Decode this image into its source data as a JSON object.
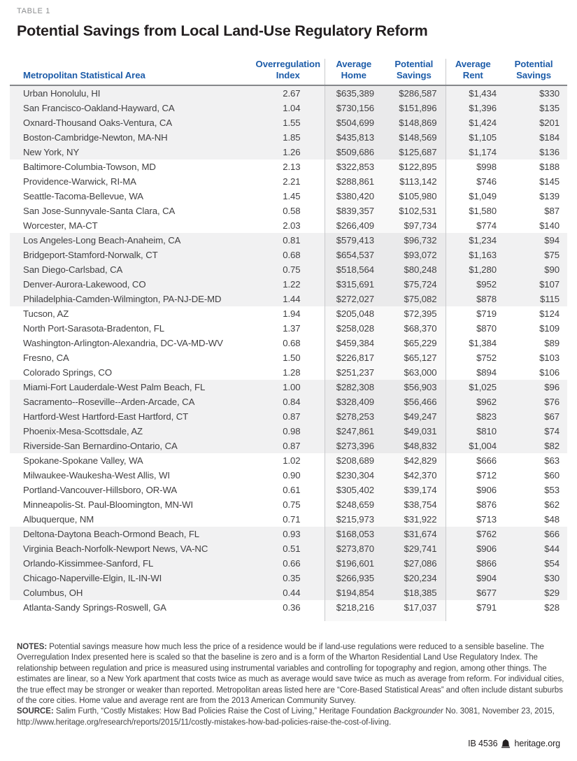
{
  "page": {
    "eyebrow": "TABLE 1",
    "title": "Potential Savings from Local Land-Use Regulatory Reform"
  },
  "colors": {
    "header_blue": "#1d5ca9",
    "band_gray": "#f1f1f2",
    "divider_gray": "#c9cacc",
    "header_rule_gray": "#85878a",
    "body_text": "#414042",
    "title_black": "#231f20"
  },
  "table": {
    "headers": [
      {
        "key": "msa",
        "lines": [
          "Metropolitan Statistical Area"
        ]
      },
      {
        "key": "overregulation-index",
        "lines": [
          "Overregulation",
          "Index"
        ]
      },
      {
        "key": "average-home",
        "lines": [
          "Average",
          "Home"
        ]
      },
      {
        "key": "potential-savings-home",
        "lines": [
          "Potential",
          "Savings"
        ]
      },
      {
        "key": "average-rent",
        "lines": [
          "Average",
          "Rent"
        ]
      },
      {
        "key": "potential-savings-rent",
        "lines": [
          "Potential",
          "Savings"
        ]
      }
    ],
    "rows": [
      {
        "msa": "Urban Honolulu, HI",
        "index": "2.67",
        "home": "$635,389",
        "home_savings": "$286,587",
        "rent": "$1,434",
        "rent_savings": "$330"
      },
      {
        "msa": "San Francisco-Oakland-Hayward, CA",
        "index": "1.04",
        "home": "$730,156",
        "home_savings": "$151,896",
        "rent": "$1,396",
        "rent_savings": "$135"
      },
      {
        "msa": "Oxnard-Thousand Oaks-Ventura, CA",
        "index": "1.55",
        "home": "$504,699",
        "home_savings": "$148,869",
        "rent": "$1,424",
        "rent_savings": "$201"
      },
      {
        "msa": "Boston-Cambridge-Newton, MA-NH",
        "index": "1.85",
        "home": "$435,813",
        "home_savings": "$148,569",
        "rent": "$1,105",
        "rent_savings": "$184"
      },
      {
        "msa": "New York, NY",
        "index": "1.26",
        "home": "$509,686",
        "home_savings": "$125,687",
        "rent": "$1,174",
        "rent_savings": "$136"
      },
      {
        "msa": "Baltimore-Columbia-Towson, MD",
        "index": "2.13",
        "home": "$322,853",
        "home_savings": "$122,895",
        "rent": "$998",
        "rent_savings": "$188"
      },
      {
        "msa": "Providence-Warwick, RI-MA",
        "index": "2.21",
        "home": "$288,861",
        "home_savings": "$113,142",
        "rent": "$746",
        "rent_savings": "$145"
      },
      {
        "msa": "Seattle-Tacoma-Bellevue, WA",
        "index": "1.45",
        "home": "$380,420",
        "home_savings": "$105,980",
        "rent": "$1,049",
        "rent_savings": "$139"
      },
      {
        "msa": "San Jose-Sunnyvale-Santa Clara, CA",
        "index": "0.58",
        "home": "$839,357",
        "home_savings": "$102,531",
        "rent": "$1,580",
        "rent_savings": "$87"
      },
      {
        "msa": "Worcester, MA-CT",
        "index": "2.03",
        "home": "$266,409",
        "home_savings": "$97,734",
        "rent": "$774",
        "rent_savings": "$140"
      },
      {
        "msa": "Los Angeles-Long Beach-Anaheim, CA",
        "index": "0.81",
        "home": "$579,413",
        "home_savings": "$96,732",
        "rent": "$1,234",
        "rent_savings": "$94"
      },
      {
        "msa": "Bridgeport-Stamford-Norwalk, CT",
        "index": "0.68",
        "home": "$654,537",
        "home_savings": "$93,072",
        "rent": "$1,163",
        "rent_savings": "$75"
      },
      {
        "msa": "San Diego-Carlsbad, CA",
        "index": "0.75",
        "home": "$518,564",
        "home_savings": "$80,248",
        "rent": "$1,280",
        "rent_savings": "$90"
      },
      {
        "msa": "Denver-Aurora-Lakewood, CO",
        "index": "1.22",
        "home": "$315,691",
        "home_savings": "$75,724",
        "rent": "$952",
        "rent_savings": "$107"
      },
      {
        "msa": "Philadelphia-Camden-Wilmington, PA-NJ-DE-MD",
        "index": "1.44",
        "home": "$272,027",
        "home_savings": "$75,082",
        "rent": "$878",
        "rent_savings": "$115"
      },
      {
        "msa": "Tucson, AZ",
        "index": "1.94",
        "home": "$205,048",
        "home_savings": "$72,395",
        "rent": "$719",
        "rent_savings": "$124"
      },
      {
        "msa": "North Port-Sarasota-Bradenton, FL",
        "index": "1.37",
        "home": "$258,028",
        "home_savings": "$68,370",
        "rent": "$870",
        "rent_savings": "$109"
      },
      {
        "msa": "Washington-Arlington-Alexandria, DC-VA-MD-WV",
        "index": "0.68",
        "home": "$459,384",
        "home_savings": "$65,229",
        "rent": "$1,384",
        "rent_savings": "$89"
      },
      {
        "msa": "Fresno, CA",
        "index": "1.50",
        "home": "$226,817",
        "home_savings": "$65,127",
        "rent": "$752",
        "rent_savings": "$103"
      },
      {
        "msa": "Colorado Springs, CO",
        "index": "1.28",
        "home": "$251,237",
        "home_savings": "$63,000",
        "rent": "$894",
        "rent_savings": "$106"
      },
      {
        "msa": "Miami-Fort Lauderdale-West Palm Beach, FL",
        "index": "1.00",
        "home": "$282,308",
        "home_savings": "$56,903",
        "rent": "$1,025",
        "rent_savings": "$96"
      },
      {
        "msa": "Sacramento--Roseville--Arden-Arcade, CA",
        "index": "0.84",
        "home": "$328,409",
        "home_savings": "$56,466",
        "rent": "$962",
        "rent_savings": "$76"
      },
      {
        "msa": "Hartford-West Hartford-East Hartford, CT",
        "index": "0.87",
        "home": "$278,253",
        "home_savings": "$49,247",
        "rent": "$823",
        "rent_savings": "$67"
      },
      {
        "msa": "Phoenix-Mesa-Scottsdale, AZ",
        "index": "0.98",
        "home": "$247,861",
        "home_savings": "$49,031",
        "rent": "$810",
        "rent_savings": "$74"
      },
      {
        "msa": "Riverside-San Bernardino-Ontario, CA",
        "index": "0.87",
        "home": "$273,396",
        "home_savings": "$48,832",
        "rent": "$1,004",
        "rent_savings": "$82"
      },
      {
        "msa": "Spokane-Spokane Valley, WA",
        "index": "1.02",
        "home": "$208,689",
        "home_savings": "$42,829",
        "rent": "$666",
        "rent_savings": "$63"
      },
      {
        "msa": "Milwaukee-Waukesha-West Allis, WI",
        "index": "0.90",
        "home": "$230,304",
        "home_savings": "$42,370",
        "rent": "$712",
        "rent_savings": "$60"
      },
      {
        "msa": "Portland-Vancouver-Hillsboro, OR-WA",
        "index": "0.61",
        "home": "$305,402",
        "home_savings": "$39,174",
        "rent": "$906",
        "rent_savings": "$53"
      },
      {
        "msa": "Minneapolis-St. Paul-Bloomington, MN-WI",
        "index": "0.75",
        "home": "$248,659",
        "home_savings": "$38,754",
        "rent": "$876",
        "rent_savings": "$62"
      },
      {
        "msa": "Albuquerque, NM",
        "index": "0.71",
        "home": "$215,973",
        "home_savings": "$31,922",
        "rent": "$713",
        "rent_savings": "$48"
      },
      {
        "msa": "Deltona-Daytona Beach-Ormond Beach, FL",
        "index": "0.93",
        "home": "$168,053",
        "home_savings": "$31,674",
        "rent": "$762",
        "rent_savings": "$66"
      },
      {
        "msa": "Virginia Beach-Norfolk-Newport News, VA-NC",
        "index": "0.51",
        "home": "$273,870",
        "home_savings": "$29,741",
        "rent": "$906",
        "rent_savings": "$44"
      },
      {
        "msa": "Orlando-Kissimmee-Sanford, FL",
        "index": "0.66",
        "home": "$196,601",
        "home_savings": "$27,086",
        "rent": "$866",
        "rent_savings": "$54"
      },
      {
        "msa": "Chicago-Naperville-Elgin, IL-IN-WI",
        "index": "0.35",
        "home": "$266,935",
        "home_savings": "$20,234",
        "rent": "$904",
        "rent_savings": "$30"
      },
      {
        "msa": "Columbus, OH",
        "index": "0.44",
        "home": "$194,854",
        "home_savings": "$18,385",
        "rent": "$677",
        "rent_savings": "$29"
      },
      {
        "msa": "Atlanta-Sandy Springs-Roswell, GA",
        "index": "0.36",
        "home": "$218,216",
        "home_savings": "$17,037",
        "rent": "$791",
        "rent_savings": "$28"
      }
    ]
  },
  "notes": {
    "label": "NOTES:",
    "text": " Potential savings measure how much less the price of a residence would be if land-use regulations were reduced to a sensible baseline. The Overregulation Index presented here is scaled so that the baseline is zero and is a form of the Wharton Residential Land Use Regulatory Index. The relationship between regulation and price is measured using instrumental variables and controlling for topography and region, among other things. The estimates are linear, so a New York apartment that costs twice as much as average would save twice as much as average from reform. For individual cities, the true effect may be stronger or weaker than reported. Metropolitan areas listed here are “Core-Based Statistical Areas” and often include distant suburbs of the core cities. Home value and average rent are from the 2013 American Community Survey."
  },
  "source": {
    "label": "SOURCE:",
    "text_before": " Salim Furth, “Costly Mistakes: How Bad Policies Raise the Cost of Living,” Heritage Foundation ",
    "italic": "Backgrounder",
    "text_after": " No. 3081, November 23, 2015, http://www.heritage.org/research/reports/2015/11/costly-mistakes-how-bad-policies-raise-the-cost-of-living."
  },
  "footer": {
    "doc_id": "IB 4536",
    "site": "heritage.org",
    "icon": "heritage-bell-icon"
  }
}
